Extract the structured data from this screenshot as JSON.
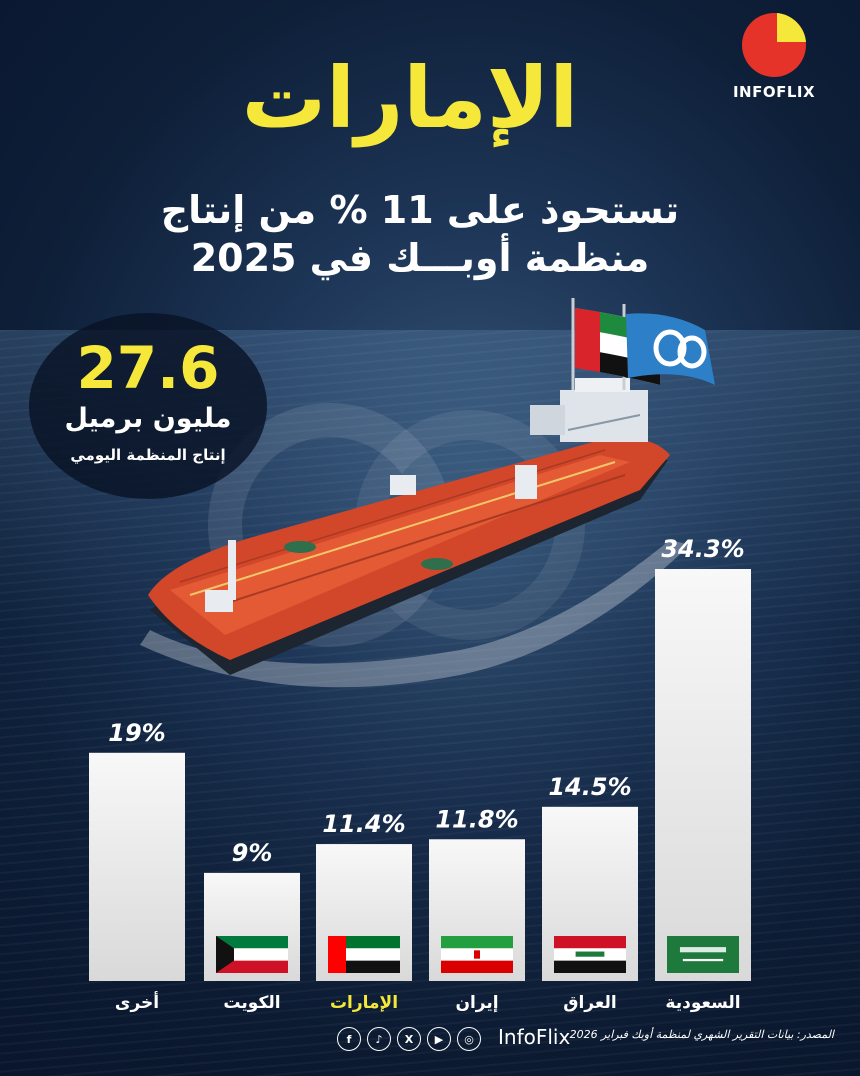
{
  "header": {
    "headline": "الإمارات",
    "subheadline_line1": "تستحوذ على 11 % من إنتاج",
    "subheadline_line2": "منظمة أوبـــك في 2025"
  },
  "logo": {
    "text_info": "INFO",
    "text_flix": "FLIX",
    "colors": {
      "red": "#e5332a",
      "yellow": "#f6e83a"
    }
  },
  "stat": {
    "value": "27.6",
    "unit": "مليون برميل",
    "caption": "إنتاج المنظمة اليومي"
  },
  "chart_data": {
    "type": "bar",
    "categories": [
      "السعودية",
      "العراق",
      "إيران",
      "الإمارات",
      "الكويت",
      "أخرى"
    ],
    "values": [
      34.3,
      14.5,
      11.8,
      11.4,
      9,
      19
    ],
    "value_labels": [
      "34.3%",
      "14.5%",
      "11.8%",
      "11.4%",
      "9%",
      "19%"
    ],
    "highlight_category": "الإمارات",
    "flags": [
      "saudi-flag-icon",
      "iraq-flag-icon",
      "iran-flag-icon",
      "uae-flag-icon",
      "kuwait-flag-icon",
      ""
    ],
    "colors": {
      "bar": "#f2f2f2",
      "highlight_label": "#f6e83a",
      "label": "#ffffff"
    },
    "ylim": [
      0,
      40
    ]
  },
  "footer": {
    "source": "المصدر: بيانات التقرير الشهري لمنظمة أوبك فبراير 2026",
    "brand": "InfoFlix",
    "social_icons": [
      "instagram-icon",
      "youtube-icon",
      "x-icon",
      "tiktok-icon",
      "facebook-icon"
    ]
  }
}
